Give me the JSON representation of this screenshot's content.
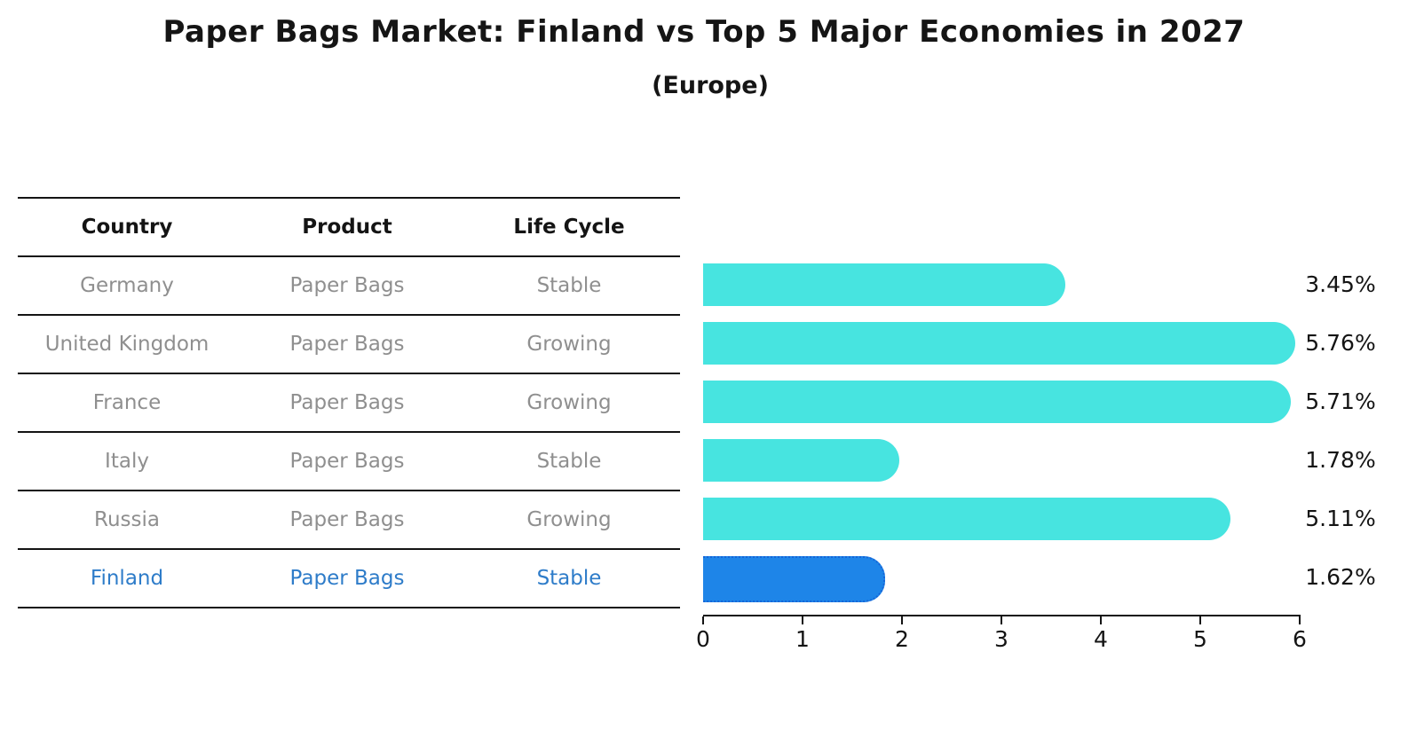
{
  "title": "Paper Bags Market: Finland vs Top 5 Major Economies in 2027",
  "subtitle": "(Europe)",
  "colors": {
    "bar_default": "#47e4e0",
    "bar_highlight": "#1e85e8",
    "bar_highlight_border": "#1565d8",
    "highlight_text": "#2e7cc9",
    "row_text": "#8f8f8f",
    "line_color": "#141414"
  },
  "table": {
    "headers": [
      "Country",
      "Product",
      "Life Cycle"
    ],
    "rows": [
      {
        "country": "Germany",
        "product": "Paper Bags",
        "life_cycle": "Stable",
        "highlight": false
      },
      {
        "country": "United Kingdom",
        "product": "Paper Bags",
        "life_cycle": "Growing",
        "highlight": false
      },
      {
        "country": "France",
        "product": "Paper Bags",
        "life_cycle": "Growing",
        "highlight": false
      },
      {
        "country": "Italy",
        "product": "Paper Bags",
        "life_cycle": "Stable",
        "highlight": false
      },
      {
        "country": "Russia",
        "product": "Paper Bags",
        "life_cycle": "Growing",
        "highlight": false
      },
      {
        "country": "Finland",
        "product": "Paper Bags",
        "life_cycle": "Stable",
        "highlight": true
      }
    ]
  },
  "chart_data": {
    "type": "bar",
    "orientation": "horizontal",
    "title": "Paper Bags Market: Finland vs Top 5 Major Economies in 2027 (Europe)",
    "categories": [
      "Germany",
      "United Kingdom",
      "France",
      "Italy",
      "Russia",
      "Finland"
    ],
    "values": [
      3.45,
      5.76,
      5.71,
      1.78,
      5.11,
      1.62
    ],
    "value_labels": [
      "3.45%",
      "5.76%",
      "5.71%",
      "1.78%",
      "5.11%",
      "1.62%"
    ],
    "highlight_index": 5,
    "xlim": [
      0,
      6
    ],
    "x_ticks": [
      "0",
      "1",
      "2",
      "3",
      "4",
      "5",
      "6"
    ],
    "grid": false,
    "legend": false
  }
}
